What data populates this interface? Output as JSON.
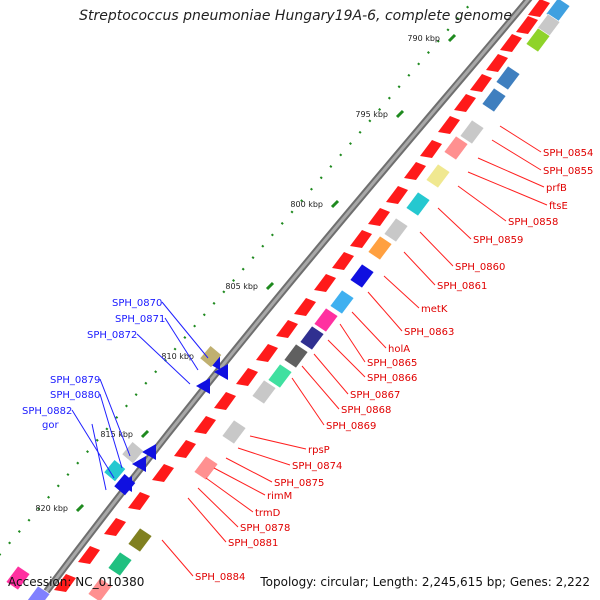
{
  "header": {
    "title": "Streptococcus pneumoniae Hungary19A-6, complete genome"
  },
  "footer": {
    "accession": "Accession: NC_010380",
    "summary": "Topology: circular; Length: 2,245,615 bp; Genes: 2,222"
  },
  "colors": {
    "forward_gene": "#ff1a1a",
    "reverse_gene": "#1010e0",
    "forward_label": "#e00000",
    "reverse_label": "#1a1aff",
    "backbone": "#8a8a8a",
    "tick": "#1f8a1f"
  },
  "kbp_marks": [
    "790 kbp",
    "795 kbp",
    "800 kbp",
    "805 kbp",
    "810 kbp",
    "815 kbp",
    "820 kbp"
  ],
  "forward_labels": [
    "SPH_0854",
    "SPH_0855",
    "prfB",
    "ftsE",
    "SPH_0858",
    "SPH_0859",
    "SPH_0860",
    "SPH_0861",
    "metK",
    "SPH_0863",
    "holA",
    "SPH_0865",
    "SPH_0866",
    "SPH_0867",
    "SPH_0868",
    "SPH_0869",
    "rpsP",
    "SPH_0874",
    "SPH_0875",
    "rimM",
    "trmD",
    "SPH_0878",
    "SPH_0881",
    "SPH_0884"
  ],
  "reverse_labels": [
    "SPH_0870",
    "SPH_0871",
    "SPH_0872",
    "SPH_0879",
    "SPH_0880",
    "SPH_0882",
    "gor"
  ]
}
